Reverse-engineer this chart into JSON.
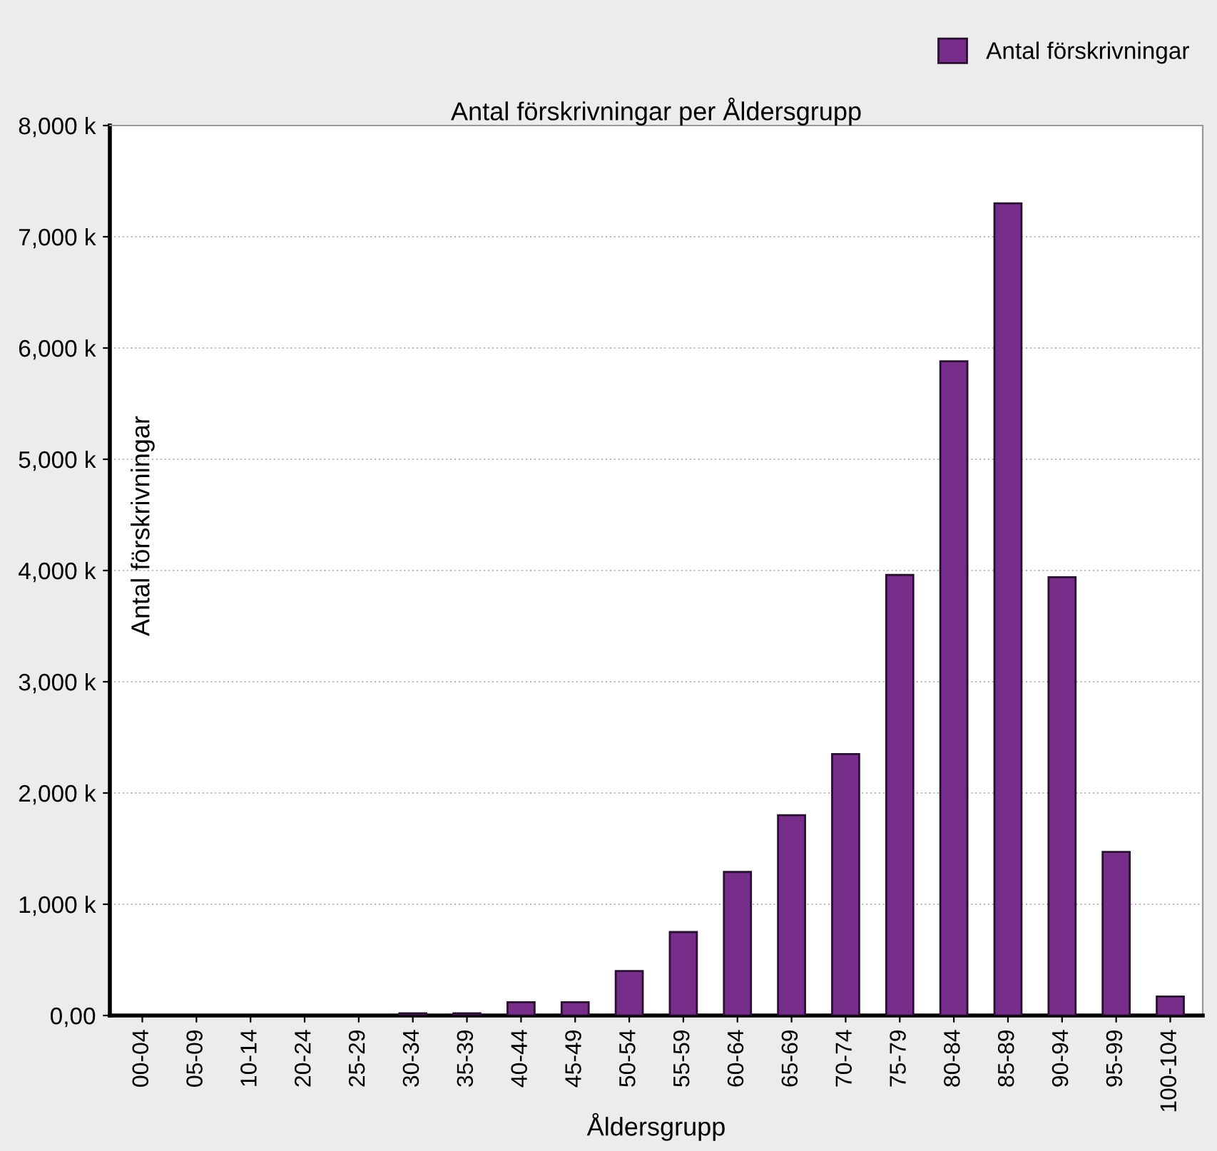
{
  "chart_data": {
    "type": "bar",
    "title": "Antal förskrivningar per Åldersgrupp",
    "xlabel": "Åldersgrupp",
    "ylabel": "Antal förskrivningar",
    "categories": [
      "00-04",
      "05-09",
      "10-14",
      "20-24",
      "25-29",
      "30-34",
      "35-39",
      "40-44",
      "45-49",
      "50-54",
      "55-59",
      "60-64",
      "65-69",
      "70-74",
      "75-79",
      "80-84",
      "85-89",
      "90-94",
      "95-99",
      "100-104"
    ],
    "series": [
      {
        "name": "Antal förskrivningar",
        "color": "#772d8a",
        "values": [
          0,
          0,
          0,
          0,
          0,
          20,
          20,
          120,
          120,
          400,
          750,
          1290,
          1800,
          2350,
          3960,
          5880,
          7300,
          3940,
          1470,
          170
        ]
      }
    ],
    "ylim": [
      0,
      8000
    ],
    "yticks": [
      {
        "value": 0,
        "label": "0,00"
      },
      {
        "value": 1000,
        "label": "1,000 k"
      },
      {
        "value": 2000,
        "label": "2,000 k"
      },
      {
        "value": 3000,
        "label": "3,000 k"
      },
      {
        "value": 4000,
        "label": "4,000 k"
      },
      {
        "value": 5000,
        "label": "5,000 k"
      },
      {
        "value": 6000,
        "label": "6,000 k"
      },
      {
        "value": 7000,
        "label": "7,000 k"
      },
      {
        "value": 8000,
        "label": "8,000 k"
      }
    ],
    "grid": "y",
    "legend": "top right"
  }
}
